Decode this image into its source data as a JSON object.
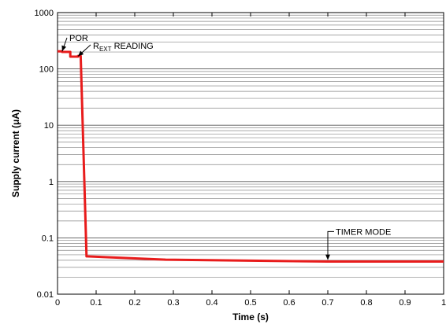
{
  "chart_data": {
    "type": "line",
    "title": "",
    "xlabel": "Time (s)",
    "ylabel": "Supply current (μA)",
    "xlim": [
      0,
      1
    ],
    "ylim": [
      0.01,
      1000
    ],
    "yscale": "log",
    "grid": true,
    "x_ticks": [
      "0",
      "0.1",
      "0.2",
      "0.3",
      "0.4",
      "0.5",
      "0.6",
      "0.7",
      "0.8",
      "0.9",
      "1"
    ],
    "y_ticks": [
      "0.01",
      "0.1",
      "1",
      "10",
      "100",
      "1000"
    ],
    "series": [
      {
        "color": "#e81c1c",
        "x": [
          0,
          0.012,
          0.012,
          0.033,
          0.033,
          0.053,
          0.053,
          0.06,
          0.075,
          0.28,
          0.7,
          1.0
        ],
        "y": [
          205,
          205,
          200,
          200,
          165,
          165,
          170,
          170,
          0.047,
          0.041,
          0.038,
          0.038
        ]
      }
    ],
    "annotations": {
      "por": "POR",
      "rext_main": "R",
      "rext_sub": "EXT",
      "rext_rest": " READING",
      "timer": "TIMER MODE"
    }
  }
}
